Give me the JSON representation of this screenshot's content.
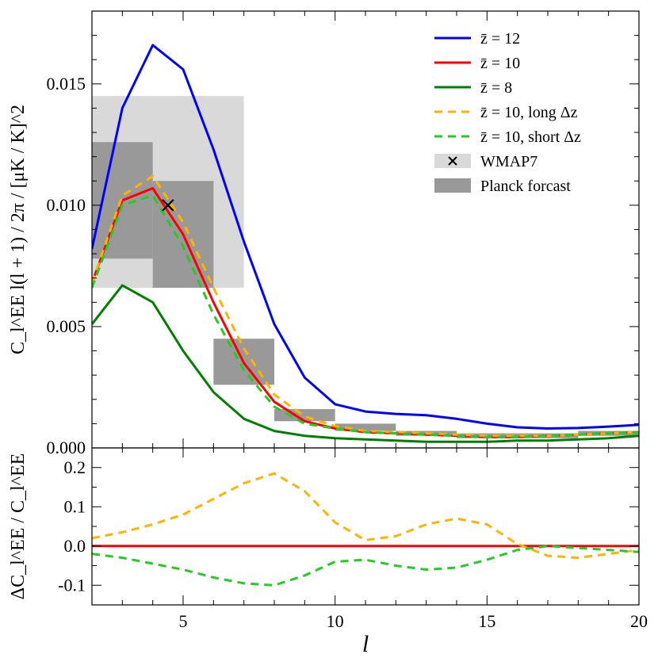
{
  "chart_data": [
    {
      "type": "line",
      "panel": "top",
      "ylabel": "C_l^EE l(l + 1) / 2π / [μK / K]^2",
      "xlim": [
        2,
        20
      ],
      "ylim": [
        0.0,
        0.018
      ],
      "yticks": [
        0.0,
        0.005,
        0.01,
        0.015
      ],
      "ytick_labels": [
        "0.000",
        "0.005",
        "0.010",
        "0.015"
      ],
      "legend_position": "top-right",
      "grid": false,
      "series": [
        {
          "name": "z̄ = 12",
          "color": "#0000ff",
          "dash": false,
          "x": [
            2,
            3,
            4,
            5,
            6,
            7,
            8,
            9,
            10,
            11,
            12,
            13,
            14,
            15,
            16,
            17,
            18,
            19,
            20
          ],
          "y": [
            0.0082,
            0.014,
            0.0166,
            0.0156,
            0.0123,
            0.0085,
            0.0051,
            0.0029,
            0.0018,
            0.0015,
            0.0014,
            0.00135,
            0.0012,
            0.001,
            0.00085,
            0.0008,
            0.00082,
            0.00088,
            0.00095
          ]
        },
        {
          "name": "z̄ = 10",
          "color": "#ff0000",
          "dash": false,
          "x": [
            2,
            3,
            4,
            5,
            6,
            7,
            8,
            9,
            10,
            11,
            12,
            13,
            14,
            15,
            16,
            17,
            18,
            19,
            20
          ],
          "y": [
            0.0068,
            0.0102,
            0.0107,
            0.0088,
            0.006,
            0.0035,
            0.0019,
            0.0011,
            0.0008,
            0.00065,
            0.0006,
            0.00055,
            0.0005,
            0.00045,
            0.00045,
            0.0005,
            0.00055,
            0.0006,
            0.00065
          ]
        },
        {
          "name": "z̄ = 8",
          "color": "#008000",
          "dash": false,
          "x": [
            2,
            3,
            4,
            5,
            6,
            7,
            8,
            9,
            10,
            11,
            12,
            13,
            14,
            15,
            16,
            17,
            18,
            19,
            20
          ],
          "y": [
            0.0051,
            0.0067,
            0.006,
            0.004,
            0.0023,
            0.0012,
            0.0007,
            0.0005,
            0.0004,
            0.00035,
            0.0003,
            0.00025,
            0.00025,
            0.00025,
            0.0003,
            0.0003,
            0.00035,
            0.0004,
            0.0005
          ]
        },
        {
          "name": "z̄ = 10, long Δz",
          "color": "#ffb300",
          "dash": true,
          "x": [
            2,
            3,
            4,
            5,
            6,
            7,
            8,
            9,
            10,
            11,
            12,
            13,
            14,
            15,
            16,
            17,
            18,
            19,
            20
          ],
          "y": [
            0.0068,
            0.0104,
            0.0112,
            0.0093,
            0.0066,
            0.0041,
            0.0022,
            0.0013,
            0.0009,
            0.0007,
            0.00065,
            0.0006,
            0.00055,
            0.0005,
            0.0005,
            0.0005,
            0.00055,
            0.0006,
            0.00065
          ]
        },
        {
          "name": "z̄ = 10, short Δz",
          "color": "#22cc22",
          "dash": true,
          "x": [
            2,
            3,
            4,
            5,
            6,
            7,
            8,
            9,
            10,
            11,
            12,
            13,
            14,
            15,
            16,
            17,
            18,
            19,
            20
          ],
          "y": [
            0.0066,
            0.01,
            0.0104,
            0.0083,
            0.0055,
            0.0032,
            0.0017,
            0.001,
            0.0008,
            0.00065,
            0.0006,
            0.00055,
            0.0005,
            0.00045,
            0.00045,
            0.0005,
            0.00055,
            0.0006,
            0.00065
          ]
        }
      ],
      "wmap7": {
        "name": "WMAP7",
        "x": 4.5,
        "y": 0.01,
        "box_x": [
          2,
          7
        ],
        "box_y": [
          0.0066,
          0.0145
        ],
        "color": "#d9d9d9"
      },
      "planck_forecast": {
        "name": "Planck forcast",
        "color": "#999999",
        "boxes": [
          {
            "x": [
              2,
              4
            ],
            "y": [
              0.0078,
              0.0126
            ]
          },
          {
            "x": [
              4,
              6
            ],
            "y": [
              0.0066,
              0.011
            ]
          },
          {
            "x": [
              6,
              8
            ],
            "y": [
              0.0026,
              0.0045
            ]
          },
          {
            "x": [
              8,
              10
            ],
            "y": [
              0.0011,
              0.0016
            ]
          },
          {
            "x": [
              10,
              12
            ],
            "y": [
              0.0007,
              0.001
            ]
          },
          {
            "x": [
              12,
              14
            ],
            "y": [
              0.0005,
              0.0007
            ]
          },
          {
            "x": [
              14,
              16
            ],
            "y": [
              0.0004,
              0.0006
            ]
          },
          {
            "x": [
              16,
              18
            ],
            "y": [
              0.0004,
              0.0006
            ]
          },
          {
            "x": [
              18,
              20
            ],
            "y": [
              0.0005,
              0.0007
            ]
          }
        ]
      }
    },
    {
      "type": "line",
      "panel": "bottom",
      "xlabel": "l",
      "ylabel": "ΔC_l^EE / C_l^EE",
      "xlim": [
        2,
        20
      ],
      "ylim": [
        -0.15,
        0.25
      ],
      "xticks": [
        5,
        10,
        15,
        20
      ],
      "xtick_labels": [
        "5",
        "10",
        "15",
        "20"
      ],
      "yticks": [
        -0.1,
        0.0,
        0.1,
        0.2
      ],
      "ytick_labels": [
        "-0.1",
        "0.0",
        "0.1",
        "0.2"
      ],
      "grid": false,
      "series": [
        {
          "color": "#ff0000",
          "dash": false,
          "x": [
            2,
            20
          ],
          "y": [
            0,
            0
          ]
        },
        {
          "color": "#ffb300",
          "dash": true,
          "x": [
            2,
            3,
            4,
            5,
            6,
            7,
            8,
            9,
            10,
            11,
            12,
            13,
            14,
            15,
            16,
            17,
            18,
            19,
            20
          ],
          "y": [
            0.02,
            0.035,
            0.055,
            0.08,
            0.12,
            0.16,
            0.185,
            0.14,
            0.06,
            0.015,
            0.025,
            0.055,
            0.07,
            0.055,
            0.005,
            -0.025,
            -0.03,
            -0.02,
            -0.01
          ]
        },
        {
          "color": "#22cc22",
          "dash": true,
          "x": [
            2,
            3,
            4,
            5,
            6,
            7,
            8,
            9,
            10,
            11,
            12,
            13,
            14,
            15,
            16,
            17,
            18,
            19,
            20
          ],
          "y": [
            -0.02,
            -0.03,
            -0.045,
            -0.06,
            -0.08,
            -0.095,
            -0.1,
            -0.075,
            -0.04,
            -0.035,
            -0.05,
            -0.06,
            -0.055,
            -0.035,
            -0.01,
            0.0,
            -0.005,
            -0.01,
            -0.015
          ]
        }
      ]
    }
  ],
  "legend": [
    {
      "label": "z̄ = 12",
      "kind": "line",
      "color": "#0000ff",
      "dash": false
    },
    {
      "label": "z̄ = 10",
      "kind": "line",
      "color": "#ff0000",
      "dash": false
    },
    {
      "label": "z̄ = 8",
      "kind": "line",
      "color": "#008000",
      "dash": false
    },
    {
      "label": "z̄ = 10, long Δz",
      "kind": "line",
      "color": "#ffb300",
      "dash": true
    },
    {
      "label": "z̄ = 10, short Δz",
      "kind": "line",
      "color": "#22cc22",
      "dash": true
    },
    {
      "label": "WMAP7",
      "kind": "cross-box",
      "color": "#d9d9d9"
    },
    {
      "label": "Planck forcast",
      "kind": "box",
      "color": "#999999"
    }
  ]
}
